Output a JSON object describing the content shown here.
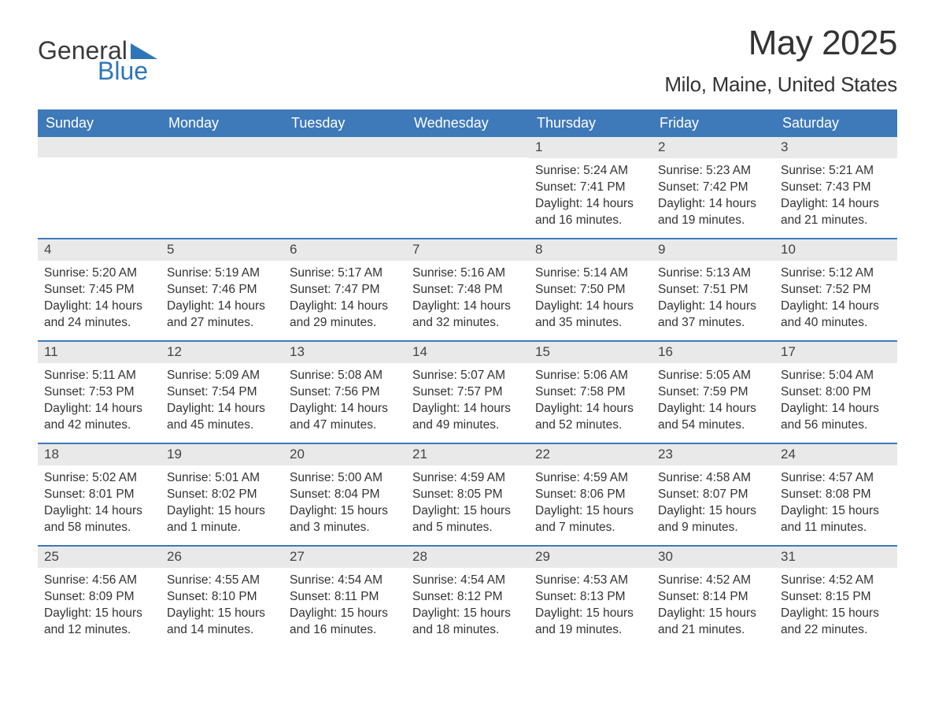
{
  "logo": {
    "word1": "General",
    "word2": "Blue"
  },
  "title": "May 2025",
  "location": "Milo, Maine, United States",
  "colors": {
    "header_bg": "#3e79b9",
    "header_text": "#ffffff",
    "daynum_bg": "#e9e9e9",
    "text": "#333333",
    "page_bg": "#ffffff",
    "week_border": "#3e79b9",
    "logo_blue": "#2f76b8"
  },
  "days_of_week": [
    "Sunday",
    "Monday",
    "Tuesday",
    "Wednesday",
    "Thursday",
    "Friday",
    "Saturday"
  ],
  "weeks": [
    [
      null,
      null,
      null,
      null,
      {
        "n": "1",
        "sunrise": "Sunrise: 5:24 AM",
        "sunset": "Sunset: 7:41 PM",
        "day1": "Daylight: 14 hours",
        "day2": "and 16 minutes."
      },
      {
        "n": "2",
        "sunrise": "Sunrise: 5:23 AM",
        "sunset": "Sunset: 7:42 PM",
        "day1": "Daylight: 14 hours",
        "day2": "and 19 minutes."
      },
      {
        "n": "3",
        "sunrise": "Sunrise: 5:21 AM",
        "sunset": "Sunset: 7:43 PM",
        "day1": "Daylight: 14 hours",
        "day2": "and 21 minutes."
      }
    ],
    [
      {
        "n": "4",
        "sunrise": "Sunrise: 5:20 AM",
        "sunset": "Sunset: 7:45 PM",
        "day1": "Daylight: 14 hours",
        "day2": "and 24 minutes."
      },
      {
        "n": "5",
        "sunrise": "Sunrise: 5:19 AM",
        "sunset": "Sunset: 7:46 PM",
        "day1": "Daylight: 14 hours",
        "day2": "and 27 minutes."
      },
      {
        "n": "6",
        "sunrise": "Sunrise: 5:17 AM",
        "sunset": "Sunset: 7:47 PM",
        "day1": "Daylight: 14 hours",
        "day2": "and 29 minutes."
      },
      {
        "n": "7",
        "sunrise": "Sunrise: 5:16 AM",
        "sunset": "Sunset: 7:48 PM",
        "day1": "Daylight: 14 hours",
        "day2": "and 32 minutes."
      },
      {
        "n": "8",
        "sunrise": "Sunrise: 5:14 AM",
        "sunset": "Sunset: 7:50 PM",
        "day1": "Daylight: 14 hours",
        "day2": "and 35 minutes."
      },
      {
        "n": "9",
        "sunrise": "Sunrise: 5:13 AM",
        "sunset": "Sunset: 7:51 PM",
        "day1": "Daylight: 14 hours",
        "day2": "and 37 minutes."
      },
      {
        "n": "10",
        "sunrise": "Sunrise: 5:12 AM",
        "sunset": "Sunset: 7:52 PM",
        "day1": "Daylight: 14 hours",
        "day2": "and 40 minutes."
      }
    ],
    [
      {
        "n": "11",
        "sunrise": "Sunrise: 5:11 AM",
        "sunset": "Sunset: 7:53 PM",
        "day1": "Daylight: 14 hours",
        "day2": "and 42 minutes."
      },
      {
        "n": "12",
        "sunrise": "Sunrise: 5:09 AM",
        "sunset": "Sunset: 7:54 PM",
        "day1": "Daylight: 14 hours",
        "day2": "and 45 minutes."
      },
      {
        "n": "13",
        "sunrise": "Sunrise: 5:08 AM",
        "sunset": "Sunset: 7:56 PM",
        "day1": "Daylight: 14 hours",
        "day2": "and 47 minutes."
      },
      {
        "n": "14",
        "sunrise": "Sunrise: 5:07 AM",
        "sunset": "Sunset: 7:57 PM",
        "day1": "Daylight: 14 hours",
        "day2": "and 49 minutes."
      },
      {
        "n": "15",
        "sunrise": "Sunrise: 5:06 AM",
        "sunset": "Sunset: 7:58 PM",
        "day1": "Daylight: 14 hours",
        "day2": "and 52 minutes."
      },
      {
        "n": "16",
        "sunrise": "Sunrise: 5:05 AM",
        "sunset": "Sunset: 7:59 PM",
        "day1": "Daylight: 14 hours",
        "day2": "and 54 minutes."
      },
      {
        "n": "17",
        "sunrise": "Sunrise: 5:04 AM",
        "sunset": "Sunset: 8:00 PM",
        "day1": "Daylight: 14 hours",
        "day2": "and 56 minutes."
      }
    ],
    [
      {
        "n": "18",
        "sunrise": "Sunrise: 5:02 AM",
        "sunset": "Sunset: 8:01 PM",
        "day1": "Daylight: 14 hours",
        "day2": "and 58 minutes."
      },
      {
        "n": "19",
        "sunrise": "Sunrise: 5:01 AM",
        "sunset": "Sunset: 8:02 PM",
        "day1": "Daylight: 15 hours",
        "day2": "and 1 minute."
      },
      {
        "n": "20",
        "sunrise": "Sunrise: 5:00 AM",
        "sunset": "Sunset: 8:04 PM",
        "day1": "Daylight: 15 hours",
        "day2": "and 3 minutes."
      },
      {
        "n": "21",
        "sunrise": "Sunrise: 4:59 AM",
        "sunset": "Sunset: 8:05 PM",
        "day1": "Daylight: 15 hours",
        "day2": "and 5 minutes."
      },
      {
        "n": "22",
        "sunrise": "Sunrise: 4:59 AM",
        "sunset": "Sunset: 8:06 PM",
        "day1": "Daylight: 15 hours",
        "day2": "and 7 minutes."
      },
      {
        "n": "23",
        "sunrise": "Sunrise: 4:58 AM",
        "sunset": "Sunset: 8:07 PM",
        "day1": "Daylight: 15 hours",
        "day2": "and 9 minutes."
      },
      {
        "n": "24",
        "sunrise": "Sunrise: 4:57 AM",
        "sunset": "Sunset: 8:08 PM",
        "day1": "Daylight: 15 hours",
        "day2": "and 11 minutes."
      }
    ],
    [
      {
        "n": "25",
        "sunrise": "Sunrise: 4:56 AM",
        "sunset": "Sunset: 8:09 PM",
        "day1": "Daylight: 15 hours",
        "day2": "and 12 minutes."
      },
      {
        "n": "26",
        "sunrise": "Sunrise: 4:55 AM",
        "sunset": "Sunset: 8:10 PM",
        "day1": "Daylight: 15 hours",
        "day2": "and 14 minutes."
      },
      {
        "n": "27",
        "sunrise": "Sunrise: 4:54 AM",
        "sunset": "Sunset: 8:11 PM",
        "day1": "Daylight: 15 hours",
        "day2": "and 16 minutes."
      },
      {
        "n": "28",
        "sunrise": "Sunrise: 4:54 AM",
        "sunset": "Sunset: 8:12 PM",
        "day1": "Daylight: 15 hours",
        "day2": "and 18 minutes."
      },
      {
        "n": "29",
        "sunrise": "Sunrise: 4:53 AM",
        "sunset": "Sunset: 8:13 PM",
        "day1": "Daylight: 15 hours",
        "day2": "and 19 minutes."
      },
      {
        "n": "30",
        "sunrise": "Sunrise: 4:52 AM",
        "sunset": "Sunset: 8:14 PM",
        "day1": "Daylight: 15 hours",
        "day2": "and 21 minutes."
      },
      {
        "n": "31",
        "sunrise": "Sunrise: 4:52 AM",
        "sunset": "Sunset: 8:15 PM",
        "day1": "Daylight: 15 hours",
        "day2": "and 22 minutes."
      }
    ]
  ]
}
